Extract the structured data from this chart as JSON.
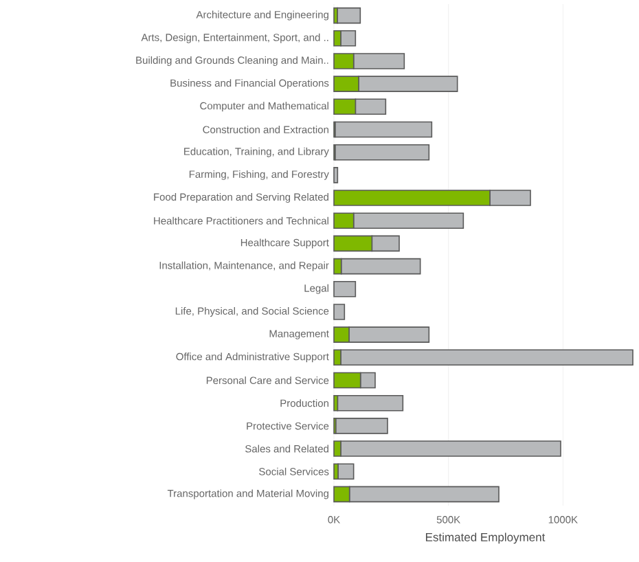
{
  "chart_data": {
    "type": "bar",
    "orientation": "horizontal",
    "stacked": true,
    "xlabel": "Estimated Employment",
    "categories": [
      "Architecture and Engineering",
      "Arts, Design, Entertainment, Sport, and ..",
      "Building and Grounds Cleaning and Main..",
      "Business and Financial Operations",
      "Computer and Mathematical",
      "Construction and Extraction",
      "Education, Training, and Library",
      "Farming, Fishing, and Forestry",
      "Food Preparation and Serving Related",
      "Healthcare Practitioners and Technical",
      "Healthcare Support",
      "Installation, Maintenance, and Repair",
      "Legal",
      "Life, Physical, and Social Science",
      "Management",
      "Office and Administrative Support",
      "Personal Care and Service",
      "Production",
      "Protective Service",
      "Sales and Related",
      "Social Services",
      "Transportation and Material Moving"
    ],
    "series": [
      {
        "color": "#7fb800",
        "values": [
          15000,
          30000,
          86000,
          108000,
          94000,
          5000,
          5000,
          0,
          681000,
          86000,
          166000,
          32000,
          0,
          0,
          66000,
          30000,
          116000,
          16000,
          8000,
          30000,
          18000,
          68000
        ]
      },
      {
        "color": "#b7b9bb",
        "values": [
          100000,
          64000,
          221000,
          431000,
          132000,
          422000,
          410000,
          16000,
          177000,
          479000,
          119000,
          345000,
          94000,
          46000,
          349000,
          1275000,
          64000,
          285000,
          226000,
          960000,
          68000,
          652000
        ]
      }
    ],
    "xlim": [
      0,
      1320000
    ],
    "xticks": [
      {
        "value": 0,
        "label": "0K"
      },
      {
        "value": 500000,
        "label": "500K"
      },
      {
        "value": 1000000,
        "label": "1000K"
      }
    ],
    "grid": "x"
  }
}
